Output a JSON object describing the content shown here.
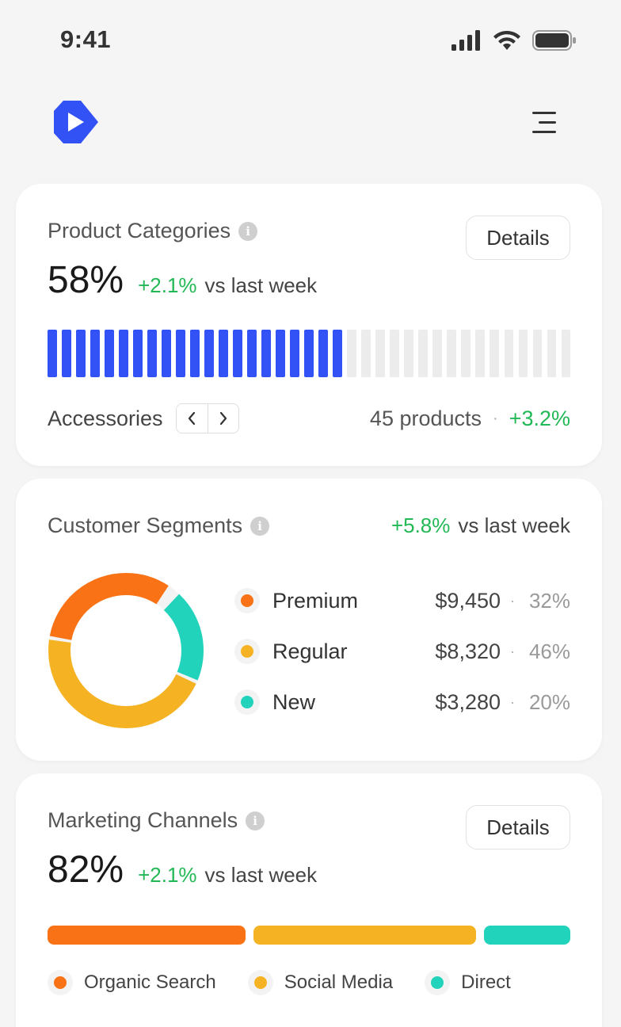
{
  "status": {
    "time": "9:41"
  },
  "product_categories": {
    "title": "Product Categories",
    "details_label": "Details",
    "value": "58%",
    "delta": "+2.1%",
    "delta_label": "vs last week",
    "progress_fraction": 0.58,
    "category": "Accessories",
    "count_text": "45 products",
    "category_delta": "+3.2%"
  },
  "customer_segments": {
    "title": "Customer Segments",
    "delta": "+5.8%",
    "delta_label": "vs last week",
    "items": [
      {
        "name": "Premium",
        "amount": "$9,450",
        "pct": "32%",
        "color": "#f97316"
      },
      {
        "name": "Regular",
        "amount": "$8,320",
        "pct": "46%",
        "color": "#f5b324"
      },
      {
        "name": "New",
        "amount": "$3,280",
        "pct": "20%",
        "color": "#22d3bc"
      }
    ]
  },
  "marketing_channels": {
    "title": "Marketing Channels",
    "details_label": "Details",
    "value": "82%",
    "delta": "+2.1%",
    "delta_label": "vs last week",
    "channels": [
      {
        "name": "Organic Search",
        "color": "#f97316",
        "share": 0.39
      },
      {
        "name": "Social Media",
        "color": "#f5b324",
        "share": 0.44
      },
      {
        "name": "Direct",
        "color": "#22d3bc",
        "share": 0.17
      }
    ]
  },
  "colors": {
    "accent": "#3352f5",
    "positive": "#22b855"
  }
}
